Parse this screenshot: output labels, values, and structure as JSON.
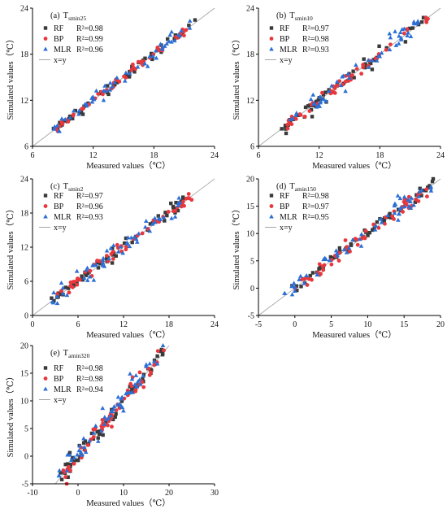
{
  "figure": {
    "panel_labels": [
      "(a)",
      "(b)",
      "(c)",
      "(d)",
      "(e)"
    ]
  },
  "legend_labels": {
    "rf": "RF",
    "bp": "BP",
    "mlr": "MLR",
    "line": "x=y"
  },
  "colors": {
    "rf": "#3a3a3a",
    "bp": "#e8383d",
    "mlr": "#2b6fd6",
    "line": "#a6a6a6",
    "axis": "#000000"
  },
  "chart_data": [
    {
      "type": "scatter",
      "panel": "(a)",
      "variable": "T",
      "subscript": "smin25",
      "xlabel": "Measured values（℃）",
      "ylabel": "Simulated values（℃）",
      "xlim": [
        6,
        24
      ],
      "ylim": [
        6,
        24
      ],
      "xticks": [
        6,
        12,
        18,
        24
      ],
      "yticks": [
        6,
        12,
        18,
        24
      ],
      "series": [
        {
          "name": "RF",
          "r2": "R²=0.98",
          "trend": {
            "x0": 7.8,
            "x1": 22.1,
            "slope": 1.0,
            "offset": 0.0,
            "noise": 0.35,
            "n": 55
          }
        },
        {
          "name": "BP",
          "r2": "R²=0.99",
          "trend": {
            "x0": 8.0,
            "x1": 21.5,
            "slope": 1.0,
            "offset": 0.0,
            "noise": 0.25,
            "n": 55
          }
        },
        {
          "name": "MLR",
          "r2": "R²=0.96",
          "trend": {
            "x0": 8.0,
            "x1": 21.8,
            "slope": 1.0,
            "offset": 0.1,
            "noise": 0.45,
            "n": 55
          }
        }
      ]
    },
    {
      "type": "scatter",
      "panel": "(b)",
      "variable": "T",
      "subscript": "smin10",
      "xlabel": "Measured values（℃）",
      "ylabel": "Simulated values（℃）",
      "xlim": [
        6,
        24
      ],
      "ylim": [
        6,
        24
      ],
      "xticks": [
        6,
        12,
        18,
        24
      ],
      "yticks": [
        6,
        12,
        18,
        24
      ],
      "series": [
        {
          "name": "RF",
          "r2": "R²=0.97",
          "trend": {
            "x0": 8.3,
            "x1": 22.5,
            "slope": 1.0,
            "offset": 0.1,
            "noise": 0.5,
            "n": 55
          }
        },
        {
          "name": "BP",
          "r2": "R²=0.98",
          "trend": {
            "x0": 8.3,
            "x1": 22.8,
            "slope": 1.0,
            "offset": 0.0,
            "noise": 0.35,
            "n": 55
          }
        },
        {
          "name": "MLR",
          "r2": "R²=0.93",
          "trend": {
            "x0": 8.3,
            "x1": 22.0,
            "slope": 1.0,
            "offset": 0.3,
            "noise": 0.75,
            "n": 55
          }
        }
      ]
    },
    {
      "type": "scatter",
      "panel": "(c)",
      "variable": "T",
      "subscript": "smin2",
      "xlabel": "Measured values（℃）",
      "ylabel": "Simulated values（℃）",
      "xlim": [
        0,
        24
      ],
      "ylim": [
        0,
        24
      ],
      "xticks": [
        0,
        6,
        12,
        18,
        24
      ],
      "yticks": [
        0,
        6,
        12,
        18,
        24
      ],
      "series": [
        {
          "name": "RF",
          "r2": "R²=0.97",
          "trend": {
            "x0": 2.3,
            "x1": 20.0,
            "slope": 1.0,
            "offset": 0.3,
            "noise": 0.6,
            "n": 55
          }
        },
        {
          "name": "BP",
          "r2": "R²=0.96",
          "trend": {
            "x0": 2.3,
            "x1": 21.0,
            "slope": 1.0,
            "offset": 0.2,
            "noise": 0.55,
            "n": 55
          }
        },
        {
          "name": "MLR",
          "r2": "R²=0.93",
          "trend": {
            "x0": 2.5,
            "x1": 19.5,
            "slope": 1.0,
            "offset": 0.4,
            "noise": 0.9,
            "n": 55
          }
        }
      ]
    },
    {
      "type": "scatter",
      "panel": "(d)",
      "variable": "T",
      "subscript": "amin150",
      "xlabel": "Measured values（℃）",
      "ylabel": "Simulated values（℃）",
      "xlim": [
        -5,
        20
      ],
      "ylim": [
        -5,
        20
      ],
      "xticks": [
        -5,
        0,
        5,
        10,
        15,
        20
      ],
      "yticks": [
        -5,
        0,
        5,
        10,
        15,
        20
      ],
      "series": [
        {
          "name": "RF",
          "r2": "R²=0.98",
          "trend": {
            "x0": -1.0,
            "x1": 19.0,
            "slope": 1.0,
            "offset": 0.2,
            "noise": 0.6,
            "n": 60
          }
        },
        {
          "name": "BP",
          "r2": "R²=0.97",
          "trend": {
            "x0": -1.0,
            "x1": 18.5,
            "slope": 1.0,
            "offset": 0.1,
            "noise": 0.7,
            "n": 60
          }
        },
        {
          "name": "MLR",
          "r2": "R²=0.95",
          "trend": {
            "x0": -1.5,
            "x1": 19.0,
            "slope": 1.0,
            "offset": 0.4,
            "noise": 1.0,
            "n": 60
          }
        }
      ]
    },
    {
      "type": "scatter",
      "panel": "(e)",
      "variable": "T",
      "subscript": "amin320",
      "xlabel": "Measured values（℃）",
      "ylabel": "Simulated values（℃）",
      "xlim": [
        -10,
        30
      ],
      "ylim": [
        -5,
        20
      ],
      "xticks": [
        -10,
        0,
        10,
        20,
        30
      ],
      "yticks": [
        -5,
        0,
        5,
        10,
        15,
        20
      ],
      "series": [
        {
          "name": "RF",
          "r2": "R²=0.98",
          "trend": {
            "x0": -4.5,
            "x1": 19.5,
            "slope": 1.0,
            "offset": 0.0,
            "noise": 0.8,
            "n": 60
          }
        },
        {
          "name": "BP",
          "r2": "R²=0.98",
          "trend": {
            "x0": -4.5,
            "x1": 19.0,
            "slope": 1.0,
            "offset": 0.0,
            "noise": 0.8,
            "n": 60
          }
        },
        {
          "name": "MLR",
          "r2": "R²=0.94",
          "trend": {
            "x0": -5.0,
            "x1": 19.0,
            "slope": 1.0,
            "offset": 0.5,
            "noise": 1.1,
            "n": 60
          }
        }
      ]
    }
  ]
}
